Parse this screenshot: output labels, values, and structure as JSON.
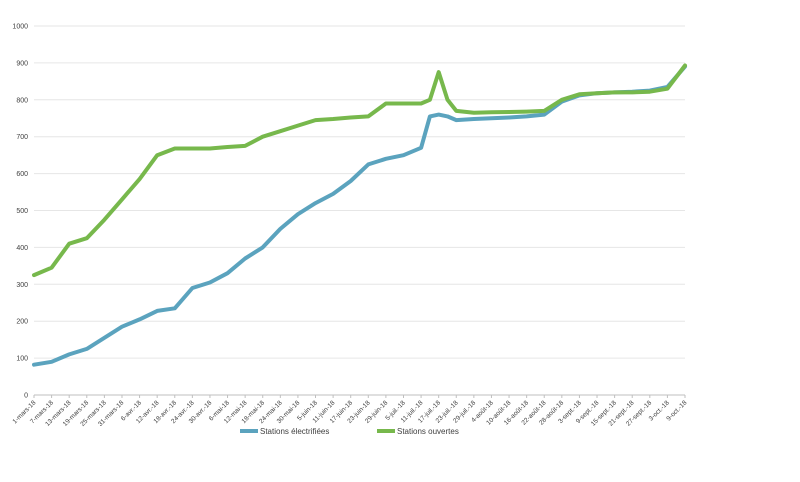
{
  "chart_data": {
    "type": "line",
    "title": "",
    "xlabel": "",
    "ylabel": "",
    "ylim": [
      0,
      1000
    ],
    "yticks": [
      0,
      100,
      200,
      300,
      400,
      500,
      600,
      700,
      800,
      900,
      1000
    ],
    "grid": true,
    "legend_position": "bottom",
    "x_tick_labels": [
      "1-mars-18",
      "7-mars-18",
      "13-mars-18",
      "19-mars-18",
      "25-mars-18",
      "31-mars-18",
      "6-avr.-18",
      "12-avr.-18",
      "18-avr.-18",
      "24-avr.-18",
      "30-avr.-18",
      "6-mai-18",
      "12-mai-18",
      "18-mai-18",
      "24-mai-18",
      "30-mai-18",
      "5-juin-18",
      "11-juin-18",
      "17-juin-18",
      "23-juin-18",
      "29-juin-18",
      "5-juil.-18",
      "11-juil.-18",
      "17-juil.-18",
      "23-juil.-18",
      "29-juil.-18",
      "4-août-18",
      "10-août-18",
      "16-août-18",
      "22-août-18",
      "28-août-18",
      "3-sept.-18",
      "9-sept.-18",
      "15-sept.-18",
      "21-sept.-18",
      "27-sept.-18",
      "3-oct.-18",
      "9-oct.-18"
    ],
    "x": [
      "1-mars-18",
      "7-mars-18",
      "13-mars-18",
      "19-mars-18",
      "25-mars-18",
      "31-mars-18",
      "6-avr.-18",
      "12-avr.-18",
      "18-avr.-18",
      "24-avr.-18",
      "30-avr.-18",
      "6-mai-18",
      "12-mai-18",
      "18-mai-18",
      "24-mai-18",
      "30-mai-18",
      "5-juin-18",
      "11-juin-18",
      "17-juin-18",
      "23-juin-18",
      "29-juin-18",
      "5-juil.-18",
      "11-juil.-18",
      "14-juil.-18",
      "17-juil.-18",
      "20-juil.-18",
      "23-juil.-18",
      "29-juil.-18",
      "4-août-18",
      "10-août-18",
      "16-août-18",
      "22-août-18",
      "28-août-18",
      "3-sept.-18",
      "9-sept.-18",
      "15-sept.-18",
      "21-sept.-18",
      "27-sept.-18",
      "3-oct.-18",
      "9-oct.-18"
    ],
    "series": [
      {
        "name": "Stations électrifiées",
        "color": "#5ba3be",
        "values": [
          82,
          90,
          110,
          125,
          155,
          185,
          205,
          228,
          235,
          290,
          305,
          330,
          370,
          400,
          450,
          490,
          520,
          545,
          580,
          625,
          640,
          650,
          670,
          755,
          760,
          755,
          745,
          748,
          750,
          752,
          755,
          760,
          795,
          812,
          818,
          820,
          822,
          825,
          835,
          890
        ]
      },
      {
        "name": "Stations ouvertes",
        "color": "#77b84c",
        "values": [
          325,
          345,
          410,
          425,
          475,
          530,
          585,
          650,
          668,
          668,
          668,
          672,
          675,
          700,
          715,
          730,
          745,
          748,
          752,
          755,
          790,
          790,
          790,
          800,
          875,
          800,
          770,
          765,
          766,
          767,
          768,
          770,
          800,
          815,
          818,
          820,
          820,
          822,
          830,
          893
        ]
      }
    ]
  }
}
